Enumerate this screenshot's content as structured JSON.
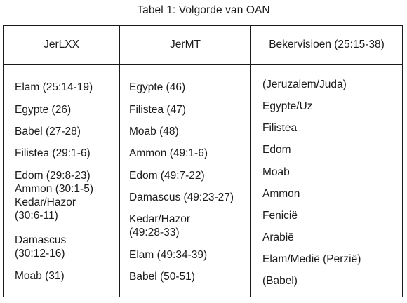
{
  "caption": "Tabel 1: Volgorde van OAN",
  "headers": [
    "JerLXX",
    "JerMT",
    "Bekervisioen (25:15-38)"
  ],
  "columns": [
    [
      "Elam (25:14-19)",
      "Egypte (26)",
      "Babel (27-28)",
      "Filistea (29:1-6)",
      "Edom (29:8-23)",
      "Ammon (30:1-5)",
      "Kedar/Hazor",
      "(30:6-11)",
      "Damascus",
      "(30:12-16)",
      "Moab (31)"
    ],
    [
      "Egypte (46)",
      "Filistea (47)",
      "Moab (48)",
      "Ammon (49:1-6)",
      "Edom (49:7-22)",
      "Damascus (49:23-27)",
      "Kedar/Hazor",
      "(49:28-33)",
      "Elam (49:34-39)",
      "Babel (50-51)"
    ],
    [
      "(Jeruzalem/Juda)",
      "Egypte/Uz",
      "Filistea",
      "Edom",
      "Moab",
      "Ammon",
      "Fenicië",
      "Arabië",
      "Elam/Medië (Perzië)",
      "(Babel)"
    ]
  ]
}
